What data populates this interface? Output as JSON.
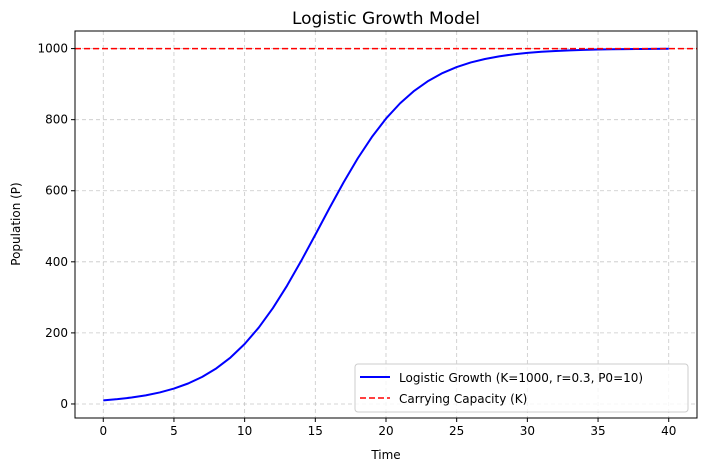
{
  "chart_data": {
    "type": "line",
    "title": "Logistic Growth Model",
    "xlabel": "Time",
    "ylabel": "Population (P)",
    "xlim": [
      -2,
      42
    ],
    "ylim": [
      -39.5,
      1049.5
    ],
    "xticks": [
      0,
      5,
      10,
      15,
      20,
      25,
      30,
      35,
      40
    ],
    "yticks": [
      0,
      200,
      400,
      600,
      800,
      1000
    ],
    "grid": true,
    "legend_position": "lower-right",
    "series": [
      {
        "name": "Logistic Growth (K=1000, r=0.3, P0=10)",
        "color": "#0000ff",
        "style": "solid",
        "x": [
          0,
          1,
          2,
          3,
          4,
          5,
          6,
          7,
          8,
          9,
          10,
          11,
          12,
          13,
          14,
          15,
          16,
          17,
          18,
          19,
          20,
          21,
          22,
          23,
          24,
          25,
          26,
          27,
          28,
          29,
          30,
          31,
          32,
          33,
          34,
          35,
          36,
          37,
          38,
          39,
          40
        ],
        "y": [
          10,
          13.45,
          18.07,
          24.24,
          32.44,
          43.3,
          57.58,
          76.2,
          100.2,
          130.7,
          168.7,
          215.0,
          269.9,
          332.9,
          402.5,
          476.2,
          551.0,
          623.6,
          691.1,
          751.1,
          803.0,
          846.2,
          881.3,
          909.3,
          931.2,
          948.1,
          961.0,
          970.8,
          978.2,
          983.8,
          987.9,
          991.0,
          993.3,
          995.1,
          996.3,
          997.3,
          998.0,
          998.5,
          998.9,
          999.2,
          999.4
        ]
      },
      {
        "name": "Carrying Capacity (K)",
        "color": "#ff0000",
        "style": "dashed",
        "type": "hline",
        "y": 1000
      }
    ]
  }
}
